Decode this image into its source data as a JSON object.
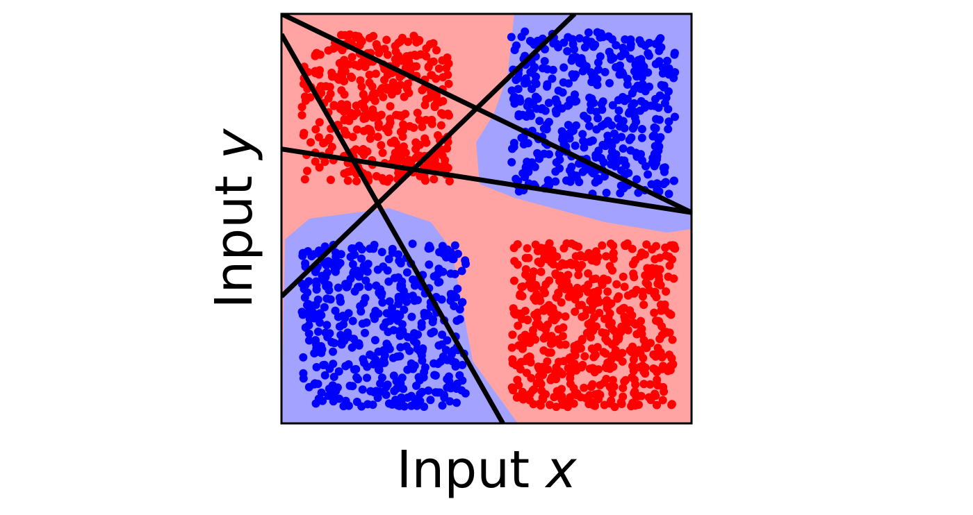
{
  "chart_data": {
    "type": "scatter",
    "title": "",
    "xlabel_text": "Input ",
    "xlabel_var": "x",
    "ylabel_text": "Input ",
    "ylabel_var": "y",
    "xlim": [
      -1,
      1
    ],
    "ylim": [
      -1,
      1
    ],
    "grid": false,
    "legend": "none",
    "colors": {
      "red_points": "#ff0000",
      "blue_points": "#0000ff",
      "red_region": "#ffa3a3",
      "blue_region": "#a3a3ff",
      "lines": "#000000",
      "frame": "#000000"
    },
    "series": [
      {
        "color": "red",
        "clusters": [
          {
            "x_range": [
              -0.9,
              -0.18
            ],
            "y_range": [
              0.18,
              0.9
            ],
            "count": 400
          },
          {
            "x_range": [
              0.12,
              0.92
            ],
            "y_range": [
              -0.92,
              -0.12
            ],
            "count": 560
          }
        ]
      },
      {
        "color": "blue",
        "clusters": [
          {
            "x_range": [
              -0.9,
              -0.1
            ],
            "y_range": [
              -0.92,
              -0.12
            ],
            "count": 460
          },
          {
            "x_range": [
              0.12,
              0.92
            ],
            "y_range": [
              0.12,
              0.92
            ],
            "count": 440
          }
        ]
      }
    ],
    "decision_lines": [
      {
        "from": [
          -1.0,
          1.0
        ],
        "to": [
          1.0,
          0.03
        ]
      },
      {
        "from": [
          -1.0,
          0.9
        ],
        "to": [
          0.08,
          -1.0
        ]
      },
      {
        "from": [
          -1.0,
          0.34
        ],
        "to": [
          1.0,
          0.03
        ]
      },
      {
        "from": [
          -1.0,
          -0.38
        ],
        "to": [
          0.43,
          1.0
        ]
      }
    ]
  }
}
